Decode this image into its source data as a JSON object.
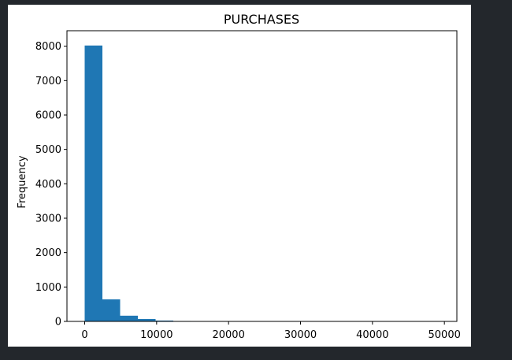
{
  "chart_data": {
    "type": "bar",
    "title": "PURCHASES",
    "xlabel": "",
    "ylabel": "Frequency",
    "x_ticks": [
      0,
      10000,
      20000,
      30000,
      40000,
      50000
    ],
    "y_ticks": [
      0,
      1000,
      2000,
      3000,
      4000,
      5000,
      6000,
      7000,
      8000
    ],
    "xlim": [
      -2463,
      51732
    ],
    "ylim": [
      0,
      8450
    ],
    "bin_edges": [
      0,
      2464.0,
      4928.0,
      7392.0,
      9856.0,
      12320.0,
      14784.0,
      17248.0,
      19712.0,
      22176.0,
      24640.0,
      27104.0,
      29568.0,
      32032.0,
      34496.0,
      36960.0,
      39424.0,
      41888.0,
      44352.0,
      46816.0,
      49280.0
    ],
    "values": [
      8020,
      640,
      165,
      70,
      25,
      12,
      8,
      5,
      3,
      2,
      2,
      1,
      1,
      1,
      1,
      1,
      0,
      1,
      0,
      1
    ],
    "bar_color": "#1f77b4",
    "grid": false
  }
}
